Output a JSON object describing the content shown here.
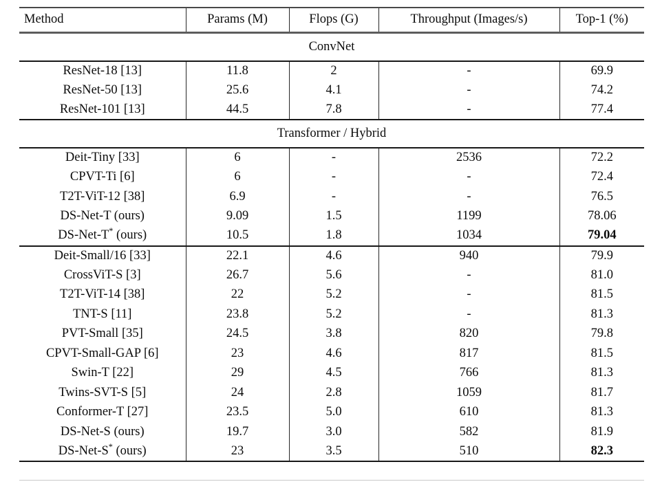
{
  "table": {
    "columns": [
      "Method",
      "Params (M)",
      "Flops (G)",
      "Throughput (Images/s)",
      "Top-1 (%)"
    ],
    "blocks": [
      {
        "type": "section",
        "title": "ConvNet"
      },
      {
        "type": "rows",
        "rows": [
          {
            "method": "ResNet-18 [13]",
            "params": "11.8",
            "flops": "2",
            "throughput": "-",
            "top1": "69.9",
            "top1_bold": false
          },
          {
            "method": "ResNet-50 [13]",
            "params": "25.6",
            "flops": "4.1",
            "throughput": "-",
            "top1": "74.2",
            "top1_bold": false
          },
          {
            "method": "ResNet-101 [13]",
            "params": "44.5",
            "flops": "7.8",
            "throughput": "-",
            "top1": "77.4",
            "top1_bold": false
          }
        ]
      },
      {
        "type": "section",
        "title": "Transformer / Hybrid"
      },
      {
        "type": "rows",
        "rows": [
          {
            "method": "Deit-Tiny [33]",
            "params": "6",
            "flops": "-",
            "throughput": "2536",
            "top1": "72.2",
            "top1_bold": false
          },
          {
            "method": "CPVT-Ti [6]",
            "params": "6",
            "flops": "-",
            "throughput": "-",
            "top1": "72.4",
            "top1_bold": false
          },
          {
            "method": "T2T-ViT-12 [38]",
            "params": "6.9",
            "flops": "-",
            "throughput": "-",
            "top1": "76.5",
            "top1_bold": false
          },
          {
            "method": "DS-Net-T (ours)",
            "params": "9.09",
            "flops": "1.5",
            "throughput": "1199",
            "top1": "78.06",
            "top1_bold": false
          },
          {
            "method": "DS-Net-T* (ours)",
            "params": "10.5",
            "flops": "1.8",
            "throughput": "1034",
            "top1": "79.04",
            "top1_bold": true
          }
        ]
      },
      {
        "type": "rows",
        "rows": [
          {
            "method": "Deit-Small/16 [33]",
            "params": "22.1",
            "flops": "4.6",
            "throughput": "940",
            "top1": "79.9",
            "top1_bold": false
          },
          {
            "method": "CrossViT-S [3]",
            "params": "26.7",
            "flops": "5.6",
            "throughput": "-",
            "top1": "81.0",
            "top1_bold": false
          },
          {
            "method": "T2T-ViT-14 [38]",
            "params": "22",
            "flops": "5.2",
            "throughput": "-",
            "top1": "81.5",
            "top1_bold": false
          },
          {
            "method": "TNT-S [11]",
            "params": "23.8",
            "flops": "5.2",
            "throughput": "-",
            "top1": "81.3",
            "top1_bold": false
          },
          {
            "method": "PVT-Small [35]",
            "params": "24.5",
            "flops": "3.8",
            "throughput": "820",
            "top1": "79.8",
            "top1_bold": false
          },
          {
            "method": "CPVT-Small-GAP [6]",
            "params": "23",
            "flops": "4.6",
            "throughput": "817",
            "top1": "81.5",
            "top1_bold": false
          },
          {
            "method": "Swin-T [22]",
            "params": "29",
            "flops": "4.5",
            "throughput": "766",
            "top1": "81.3",
            "top1_bold": false
          },
          {
            "method": "Twins-SVT-S [5]",
            "params": "24",
            "flops": "2.8",
            "throughput": "1059",
            "top1": "81.7",
            "top1_bold": false
          },
          {
            "method": "Conformer-T [27]",
            "params": "23.5",
            "flops": "5.0",
            "throughput": "610",
            "top1": "81.3",
            "top1_bold": false
          },
          {
            "method": "DS-Net-S (ours)",
            "params": "19.7",
            "flops": "3.0",
            "throughput": "582",
            "top1": "81.9",
            "top1_bold": false
          },
          {
            "method": "DS-Net-S* (ours)",
            "params": "23",
            "flops": "3.5",
            "throughput": "510",
            "top1": "82.3",
            "top1_bold": true
          }
        ]
      }
    ]
  }
}
